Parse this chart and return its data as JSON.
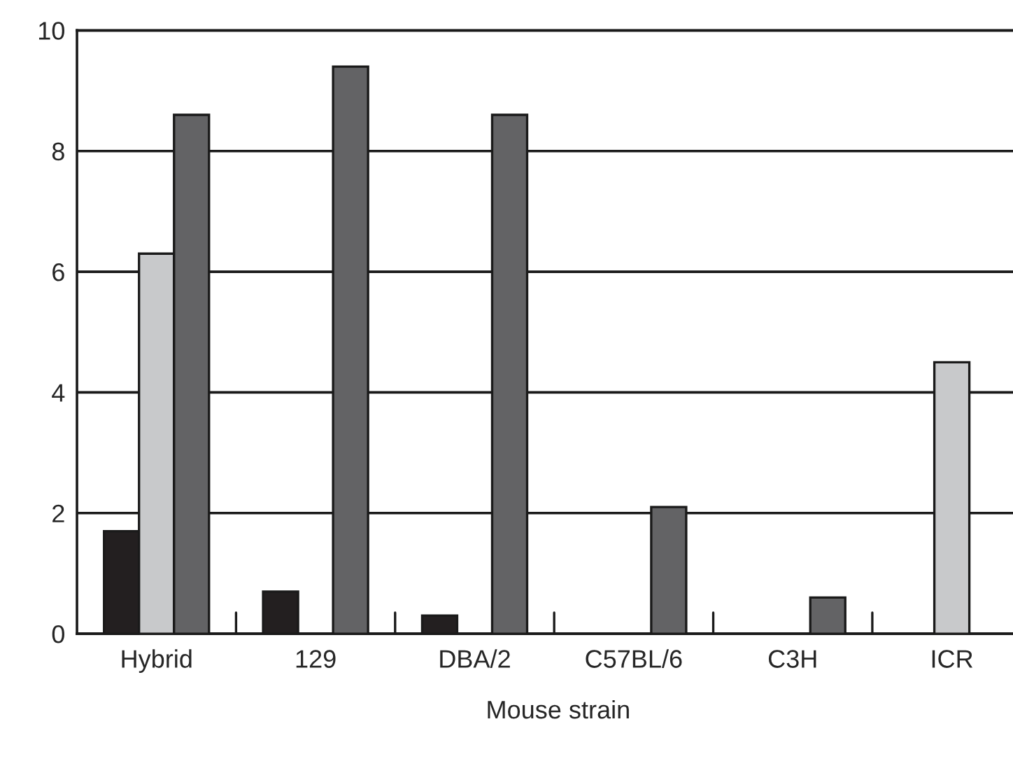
{
  "chart_data": {
    "type": "bar",
    "xlabel": "Mouse strain",
    "categories": [
      "Hybrid",
      "129",
      "DBA/2",
      "C57BL/6",
      "C3H",
      "ICR"
    ],
    "series": [
      {
        "color": "#231f20",
        "values": [
          1.7,
          0.7,
          0.3,
          null,
          null,
          null
        ]
      },
      {
        "color": "#c8c9cb",
        "values": [
          6.3,
          null,
          null,
          null,
          null,
          4.5
        ]
      },
      {
        "color": "#636365",
        "values": [
          8.6,
          9.4,
          8.6,
          2.1,
          0.6,
          null
        ]
      }
    ],
    "ylim": [
      0,
      10
    ],
    "yticks": [
      0,
      2,
      4,
      6,
      8,
      10
    ],
    "grid": "y"
  }
}
